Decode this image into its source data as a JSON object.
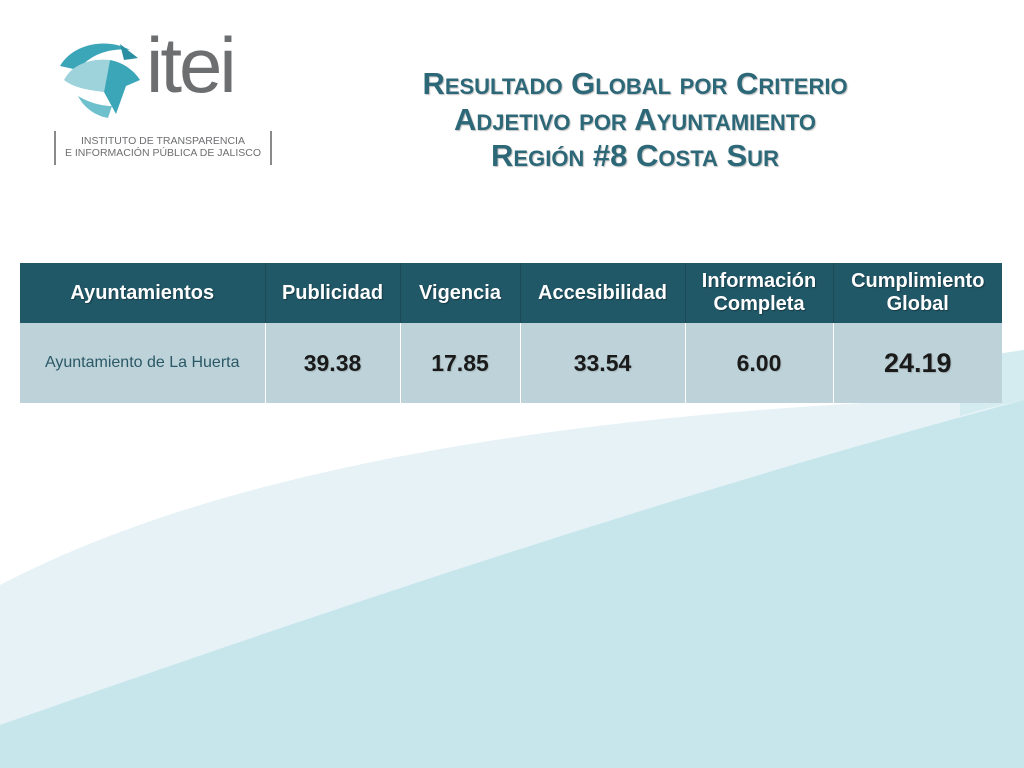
{
  "logo": {
    "word": "itei",
    "subtitle_line1": "INSTITUTO DE TRANSPARENCIA",
    "subtitle_line2": "E INFORMACIÓN PÚBLICA DE JALISCO",
    "colors": {
      "teal": "#3ba6b8",
      "light_teal": "#9fd3dc",
      "gray": "#6d6e70"
    }
  },
  "title": {
    "line1": "Resultado Global por Criterio",
    "line2": "Adjetivo por Ayuntamiento",
    "line3": "Región #8 Costa Sur",
    "color": "#2c6878"
  },
  "table": {
    "headers": {
      "ayuntamientos": "Ayuntamientos",
      "publicidad": "Publicidad",
      "vigencia": "Vigencia",
      "accesibilidad": "Accesibilidad",
      "informacion_line1": "Información",
      "informacion_line2": "Completa",
      "cumplimiento_line1": "Cumplimiento",
      "cumplimiento_line2": "Global"
    },
    "rows": [
      {
        "ayuntamiento": "Ayuntamiento de La Huerta",
        "publicidad": "39.38",
        "vigencia": "17.85",
        "accesibilidad": "33.54",
        "informacion_completa": "6.00",
        "cumplimiento_global": "24.19"
      }
    ],
    "colors": {
      "header_bg": "#215868",
      "row_bg": "#bed3d9"
    }
  }
}
